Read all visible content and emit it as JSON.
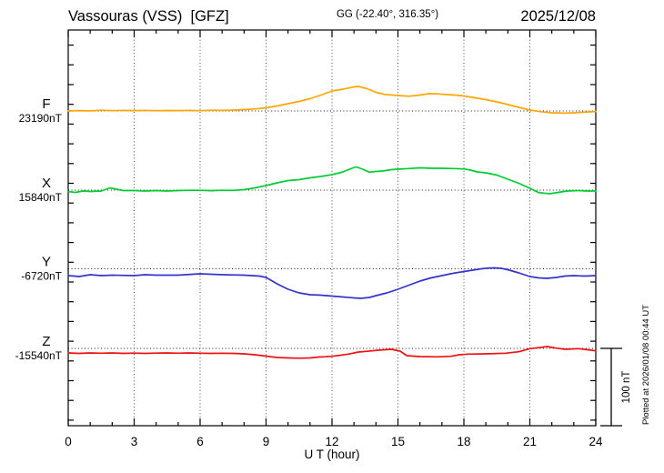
{
  "header": {
    "station": "Vassouras (VSS)  [GFZ]",
    "coords": "GG (-22.40°, 316.35°)",
    "date": "2025/12/08"
  },
  "xaxis": {
    "label": "U T (hour)",
    "ticks": [
      0,
      3,
      6,
      9,
      12,
      15,
      18,
      21,
      24
    ],
    "minor_step_hours": 1,
    "range": [
      0,
      24
    ]
  },
  "scale_bar": {
    "label": "100 nT",
    "nT": 100
  },
  "footer_note": "Plotted at 2026/01/08 00:44 UT",
  "chart_data": {
    "type": "line",
    "title": "Vassouras (VSS) [GFZ] magnetogram 2025/12/08",
    "xlabel": "U T (hour)",
    "x_range": [
      0,
      24
    ],
    "grid": "dotted vertical every 3 h, dotted horizontal baseline per component",
    "scale_nT_per_bar": 100,
    "note": "points are [hour UT, offset in nT from the quoted baseline value]",
    "series": [
      {
        "name": "F",
        "baseline_label": "23190nT",
        "baseline_nT": 23190,
        "color": "#FFA500",
        "points": [
          [
            0,
            0
          ],
          [
            0.5,
            0.5
          ],
          [
            1,
            0.1
          ],
          [
            1.5,
            1
          ],
          [
            2,
            0.3
          ],
          [
            2.5,
            0.8
          ],
          [
            3,
            0.5
          ],
          [
            3.5,
            0.8
          ],
          [
            4,
            0.3
          ],
          [
            4.5,
            0.6
          ],
          [
            5,
            0.5
          ],
          [
            5.5,
            0.8
          ],
          [
            6,
            0.4
          ],
          [
            6.5,
            0.9
          ],
          [
            7,
            0.7
          ],
          [
            7.5,
            1.2
          ],
          [
            8,
            1.8
          ],
          [
            8.5,
            2.6
          ],
          [
            9,
            4.1
          ],
          [
            9.5,
            6.5
          ],
          [
            10,
            9.4
          ],
          [
            10.5,
            12.4
          ],
          [
            11,
            15.9
          ],
          [
            11.5,
            20.6
          ],
          [
            12,
            25.9
          ],
          [
            12.5,
            28.2
          ],
          [
            13,
            31.2
          ],
          [
            13.2,
            31.8
          ],
          [
            13.6,
            28.8
          ],
          [
            14,
            24.1
          ],
          [
            14.4,
            21.4
          ],
          [
            15,
            20
          ],
          [
            15.5,
            19.1
          ],
          [
            16,
            20.6
          ],
          [
            16.4,
            22.4
          ],
          [
            16.8,
            22.1
          ],
          [
            17.2,
            21.2
          ],
          [
            17.6,
            20.6
          ],
          [
            18,
            19.4
          ],
          [
            18.5,
            17.1
          ],
          [
            19,
            14.7
          ],
          [
            19.6,
            11.2
          ],
          [
            20,
            8.2
          ],
          [
            20.5,
            4.7
          ],
          [
            21,
            1.2
          ],
          [
            21.5,
            -0.9
          ],
          [
            22,
            -2.4
          ],
          [
            22.6,
            -2.8
          ],
          [
            23,
            -2.4
          ],
          [
            23.4,
            -1.6
          ],
          [
            24,
            -0.7
          ]
        ]
      },
      {
        "name": "X",
        "baseline_label": "15840nT",
        "baseline_nT": 15840,
        "color": "#00CC33",
        "points": [
          [
            0,
            -1.8
          ],
          [
            0.3,
            -2.9
          ],
          [
            0.7,
            -1.2
          ],
          [
            1,
            -1.8
          ],
          [
            1.5,
            -1.2
          ],
          [
            1.9,
            2.9
          ],
          [
            2.2,
            1.2
          ],
          [
            2.5,
            -0.6
          ],
          [
            3,
            -0.6
          ],
          [
            3.5,
            -1.2
          ],
          [
            4,
            -0.6
          ],
          [
            4.5,
            -1.2
          ],
          [
            5,
            -0.6
          ],
          [
            5.5,
            -0.2
          ],
          [
            6,
            -0.2
          ],
          [
            6.5,
            -0.7
          ],
          [
            7,
            -0.2
          ],
          [
            7.5,
            -0.4
          ],
          [
            8,
            0.6
          ],
          [
            8.5,
            2.9
          ],
          [
            9,
            5.9
          ],
          [
            9.5,
            9.4
          ],
          [
            10,
            12.4
          ],
          [
            10.5,
            13.5
          ],
          [
            11,
            15.9
          ],
          [
            11.5,
            17.6
          ],
          [
            12,
            20
          ],
          [
            12.5,
            23.5
          ],
          [
            12.9,
            28.2
          ],
          [
            13.1,
            30
          ],
          [
            13.4,
            27.1
          ],
          [
            13.7,
            23.2
          ],
          [
            14,
            24.1
          ],
          [
            14.3,
            24.7
          ],
          [
            14.7,
            26.5
          ],
          [
            15,
            27.1
          ],
          [
            15.5,
            27.9
          ],
          [
            16,
            28.8
          ],
          [
            16.5,
            28.2
          ],
          [
            17,
            28.2
          ],
          [
            17.5,
            27.9
          ],
          [
            18,
            27.4
          ],
          [
            18.3,
            25.9
          ],
          [
            18.6,
            23.5
          ],
          [
            19,
            22.4
          ],
          [
            19.5,
            19.4
          ],
          [
            20,
            14.1
          ],
          [
            20.5,
            8.8
          ],
          [
            21,
            2.4
          ],
          [
            21.4,
            -3.2
          ],
          [
            21.9,
            -4.7
          ],
          [
            22.3,
            -2.9
          ],
          [
            22.7,
            -1.2
          ],
          [
            23.2,
            -0.6
          ],
          [
            23.6,
            -1.2
          ],
          [
            24,
            -1.2
          ]
        ]
      },
      {
        "name": "Y",
        "baseline_label": "-6720nT",
        "baseline_nT": -6720,
        "color": "#3333CC",
        "points": [
          [
            0,
            -8.8
          ],
          [
            0.5,
            -10
          ],
          [
            1,
            -7.6
          ],
          [
            1.5,
            -8.8
          ],
          [
            2,
            -8.2
          ],
          [
            3,
            -8.8
          ],
          [
            3.5,
            -7.6
          ],
          [
            4,
            -8.2
          ],
          [
            5,
            -8.2
          ],
          [
            6,
            -6.5
          ],
          [
            6.5,
            -7.1
          ],
          [
            7,
            -7.6
          ],
          [
            8,
            -8.2
          ],
          [
            8.7,
            -9.4
          ],
          [
            9,
            -11.2
          ],
          [
            9.5,
            -19.4
          ],
          [
            10,
            -26.5
          ],
          [
            10.5,
            -31.2
          ],
          [
            11,
            -33.5
          ],
          [
            11.5,
            -34.1
          ],
          [
            12,
            -35.3
          ],
          [
            12.5,
            -36.5
          ],
          [
            13,
            -37.6
          ],
          [
            13.3,
            -38.2
          ],
          [
            13.7,
            -37.1
          ],
          [
            14,
            -34.7
          ],
          [
            14.5,
            -31.2
          ],
          [
            15,
            -26.5
          ],
          [
            15.5,
            -21.2
          ],
          [
            16,
            -15.9
          ],
          [
            16.5,
            -11.8
          ],
          [
            17,
            -8.8
          ],
          [
            17.5,
            -5.9
          ],
          [
            18,
            -3.5
          ],
          [
            18.4,
            -1.8
          ],
          [
            18.8,
            0
          ],
          [
            19.1,
            0.9
          ],
          [
            19.4,
            1.2
          ],
          [
            19.7,
            0.6
          ],
          [
            20,
            -1.2
          ],
          [
            20.5,
            -5.3
          ],
          [
            21,
            -10
          ],
          [
            21.4,
            -11.8
          ],
          [
            21.8,
            -12.4
          ],
          [
            22.2,
            -11.2
          ],
          [
            22.6,
            -9.4
          ],
          [
            23,
            -8.8
          ],
          [
            23.5,
            -9.4
          ],
          [
            24,
            -8.8
          ]
        ]
      },
      {
        "name": "Z",
        "baseline_label": "-15540nT",
        "baseline_nT": -15540,
        "color": "#EE1111",
        "points": [
          [
            0,
            -5.9
          ],
          [
            0.5,
            -6.5
          ],
          [
            1,
            -5.9
          ],
          [
            1.5,
            -6.2
          ],
          [
            2,
            -5.9
          ],
          [
            2.5,
            -6.5
          ],
          [
            3,
            -6.1
          ],
          [
            3.5,
            -6.5
          ],
          [
            4,
            -6.1
          ],
          [
            4.5,
            -5.9
          ],
          [
            5,
            -6.2
          ],
          [
            5.5,
            -5.9
          ],
          [
            6,
            -6.2
          ],
          [
            6.5,
            -6.5
          ],
          [
            7,
            -6.2
          ],
          [
            7.5,
            -6.5
          ],
          [
            8,
            -7.1
          ],
          [
            8.5,
            -8.2
          ],
          [
            9,
            -10
          ],
          [
            9.5,
            -11.8
          ],
          [
            10,
            -12.4
          ],
          [
            10.5,
            -12.7
          ],
          [
            11,
            -12.4
          ],
          [
            11.4,
            -11.2
          ],
          [
            11.7,
            -10.8
          ],
          [
            12,
            -10.2
          ],
          [
            12.4,
            -8.8
          ],
          [
            12.8,
            -7.2
          ],
          [
            13.2,
            -4.7
          ],
          [
            13.6,
            -3.8
          ],
          [
            14.1,
            -2.4
          ],
          [
            14.7,
            -1.2
          ],
          [
            15.1,
            -3.5
          ],
          [
            15.4,
            -9.4
          ],
          [
            16,
            -10.6
          ],
          [
            16.8,
            -10.9
          ],
          [
            17.4,
            -10.2
          ],
          [
            17.8,
            -8.2
          ],
          [
            18.2,
            -7.4
          ],
          [
            19,
            -7.1
          ],
          [
            19.9,
            -6.2
          ],
          [
            20.5,
            -4.3
          ],
          [
            21,
            -0.4
          ],
          [
            21.4,
            0.9
          ],
          [
            21.8,
            2.4
          ],
          [
            22.2,
            0.4
          ],
          [
            22.6,
            -1.2
          ],
          [
            23.2,
            -0.4
          ],
          [
            23.6,
            -1.6
          ],
          [
            24,
            -3.2
          ]
        ]
      }
    ]
  }
}
